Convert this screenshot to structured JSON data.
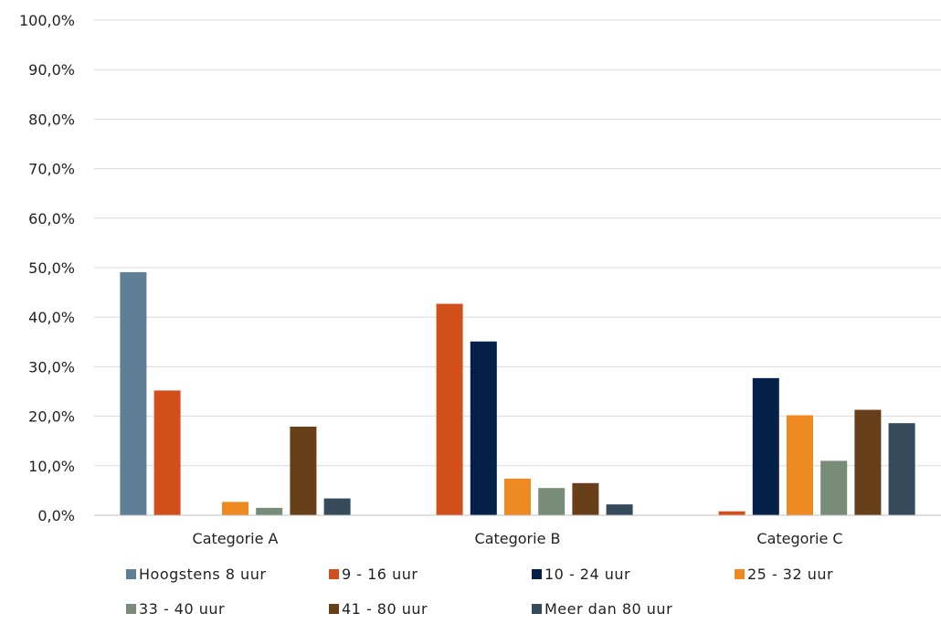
{
  "chart_data": {
    "type": "bar",
    "categories": [
      "Categorie A",
      "Categorie B",
      "Categorie C"
    ],
    "series": [
      {
        "name": "Hoogstens 8 uur",
        "color": "#5f7f96",
        "values": [
          49.1,
          0,
          0
        ]
      },
      {
        "name": "9 - 16 uur",
        "color": "#d24f1c",
        "values": [
          25.2,
          42.7,
          0.8
        ]
      },
      {
        "name": "10 - 24 uur",
        "color": "#05214a",
        "values": [
          0,
          35.1,
          27.7
        ]
      },
      {
        "name": "25 - 32 uur",
        "color": "#ef8a22",
        "values": [
          2.7,
          7.4,
          20.2
        ]
      },
      {
        "name": "33 - 40 uur",
        "color": "#788c78",
        "values": [
          1.5,
          5.5,
          11.0
        ]
      },
      {
        "name": "41 - 80 uur",
        "color": "#673f18",
        "values": [
          17.9,
          6.5,
          21.3
        ]
      },
      {
        "name": "Meer dan 80 uur",
        "color": "#354a5b",
        "values": [
          3.4,
          2.2,
          18.6
        ]
      }
    ],
    "yticks": [
      "0,0%",
      "10,0%",
      "20,0%",
      "30,0%",
      "40,0%",
      "50,0%",
      "60,0%",
      "70,0%",
      "80,0%",
      "90,0%",
      "100,0%"
    ],
    "ylim": [
      0,
      100
    ],
    "grid": true,
    "legend_position": "bottom",
    "title": "",
    "xlabel": "",
    "ylabel": ""
  }
}
